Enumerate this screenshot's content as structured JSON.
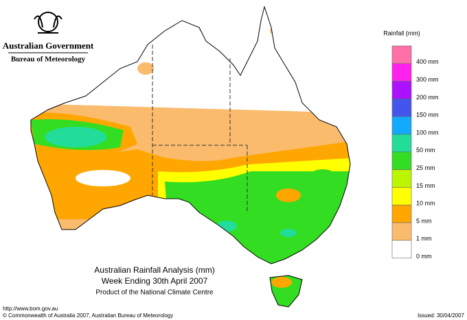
{
  "header": {
    "government": "Australian Government",
    "bureau": "Bureau of Meteorology"
  },
  "legend": {
    "title": "Rainfall (mm)",
    "items": [
      {
        "label": "400 mm",
        "color": "#ff6fa8"
      },
      {
        "label": "300 mm",
        "color": "#ff22ee"
      },
      {
        "label": "200 mm",
        "color": "#aa11ff"
      },
      {
        "label": "150 mm",
        "color": "#4455ee"
      },
      {
        "label": "100 mm",
        "color": "#11aaff"
      },
      {
        "label": "50 mm",
        "color": "#22dd99"
      },
      {
        "label": "25 mm",
        "color": "#33dd22"
      },
      {
        "label": "15 mm",
        "color": "#bbf500"
      },
      {
        "label": "10 mm",
        "color": "#ffff00"
      },
      {
        "label": "5 mm",
        "color": "#ffa700"
      },
      {
        "label": "1 mm",
        "color": "#fbbb6d"
      },
      {
        "label": "0 mm",
        "color": "#ffffff"
      }
    ]
  },
  "title": {
    "line1": "Australian Rainfall Analysis (mm)",
    "line2": "Week Ending 30th April 2007",
    "line3": "Product of the National Climate Centre"
  },
  "footer": {
    "url": "http://www.bom.gov.au",
    "copyright": "© Commonwealth of Australia 2007, Australian Bureau of Meteorology",
    "issued": "Issued: 30/04/2007"
  }
}
